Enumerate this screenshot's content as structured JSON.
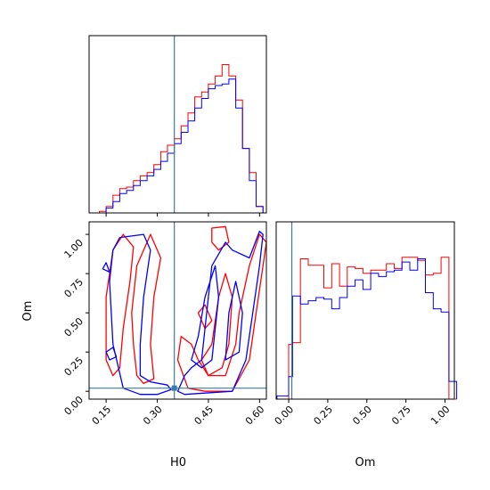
{
  "chart_data": {
    "type": "corner",
    "parameters": [
      "H0",
      "Om"
    ],
    "truth": {
      "H0": 0.35,
      "Om": 0.02
    },
    "colors": {
      "run_a": "#ff0000",
      "run_b": "#0000ff",
      "truth": "#3a7ca5"
    },
    "panels": [
      {
        "id": "hist-H0",
        "type": "step-histogram",
        "xlim": [
          0.1,
          0.62
        ],
        "bin_edges": [
          0.13,
          0.15,
          0.17,
          0.19,
          0.21,
          0.23,
          0.25,
          0.27,
          0.29,
          0.31,
          0.33,
          0.35,
          0.37,
          0.39,
          0.41,
          0.43,
          0.45,
          0.47,
          0.49,
          0.51,
          0.53,
          0.55,
          0.57,
          0.59,
          0.61
        ],
        "series": [
          {
            "color_key": "run_a",
            "values": [
              0.01,
              0.04,
              0.11,
              0.15,
              0.16,
              0.2,
              0.23,
              0.25,
              0.3,
              0.38,
              0.42,
              0.46,
              0.54,
              0.62,
              0.72,
              0.75,
              0.8,
              0.85,
              0.92,
              0.85,
              0.7,
              0.4,
              0.25,
              0.04
            ]
          },
          {
            "color_key": "run_b",
            "values": [
              0.0,
              0.03,
              0.07,
              0.12,
              0.14,
              0.17,
              0.2,
              0.23,
              0.27,
              0.32,
              0.37,
              0.43,
              0.5,
              0.57,
              0.65,
              0.71,
              0.77,
              0.79,
              0.8,
              0.83,
              0.65,
              0.4,
              0.2,
              0.04
            ]
          }
        ]
      },
      {
        "id": "contour-H0-Om",
        "type": "contour",
        "xlim": [
          0.1,
          0.62
        ],
        "ylim": [
          -0.05,
          1.08
        ],
        "xticks": [
          "0.15",
          "0.30",
          "0.45",
          "0.60"
        ],
        "yticks": [
          "0.00",
          "0.25",
          "0.50",
          "0.75",
          "1.00"
        ],
        "xlabel": "H0",
        "ylabel": "Om",
        "series": [
          {
            "color_key": "run_a",
            "contours": [
              [
                [
                  0.15,
                  0.2
                ],
                [
                  0.15,
                  0.6
                ],
                [
                  0.17,
                  0.9
                ],
                [
                  0.2,
                  1.0
                ],
                [
                  0.23,
                  0.92
                ],
                [
                  0.22,
                  0.7
                ],
                [
                  0.2,
                  0.4
                ],
                [
                  0.19,
                  0.15
                ],
                [
                  0.17,
                  0.1
                ]
              ],
              [
                [
                  0.23,
                  0.3
                ],
                [
                  0.225,
                  0.5
                ],
                [
                  0.24,
                  0.8
                ],
                [
                  0.28,
                  1.0
                ],
                [
                  0.31,
                  0.85
                ],
                [
                  0.29,
                  0.6
                ],
                [
                  0.28,
                  0.3
                ],
                [
                  0.29,
                  0.08
                ],
                [
                  0.26,
                  0.05
                ],
                [
                  0.24,
                  0.1
                ]
              ],
              [
                [
                  0.39,
                  0.02
                ],
                [
                  0.44,
                  0.0
                ],
                [
                  0.52,
                  0.0
                ],
                [
                  0.57,
                  0.2
                ],
                [
                  0.59,
                  0.5
                ],
                [
                  0.61,
                  0.8
                ],
                [
                  0.62,
                  0.95
                ],
                [
                  0.6,
                  1.0
                ],
                [
                  0.57,
                  0.8
                ],
                [
                  0.54,
                  0.5
                ],
                [
                  0.53,
                  0.3
                ],
                [
                  0.5,
                  0.1
                ],
                [
                  0.45,
                  0.1
                ],
                [
                  0.42,
                  0.2
                ],
                [
                  0.4,
                  0.3
                ],
                [
                  0.37,
                  0.35
                ],
                [
                  0.36,
                  0.2
                ]
              ],
              [
                [
                  0.43,
                  0.2
                ],
                [
                  0.46,
                  0.3
                ],
                [
                  0.48,
                  0.6
                ],
                [
                  0.5,
                  0.75
                ],
                [
                  0.52,
                  0.6
                ],
                [
                  0.51,
                  0.3
                ],
                [
                  0.49,
                  0.15
                ],
                [
                  0.45,
                  0.1
                ]
              ],
              [
                [
                  0.46,
                  0.95
                ],
                [
                  0.46,
                  1.04
                ],
                [
                  0.5,
                  1.05
                ],
                [
                  0.51,
                  0.95
                ],
                [
                  0.48,
                  0.9
                ]
              ],
              [
                [
                  0.42,
                  0.5
                ],
                [
                  0.44,
                  0.55
                ],
                [
                  0.46,
                  0.45
                ],
                [
                  0.44,
                  0.4
                ]
              ]
            ]
          },
          {
            "color_key": "run_b",
            "contours": [
              [
                [
                  0.2,
                  0.02
                ],
                [
                  0.17,
                  0.3
                ],
                [
                  0.16,
                  0.7
                ],
                [
                  0.17,
                  0.9
                ],
                [
                  0.19,
                  0.98
                ],
                [
                  0.26,
                  1.0
                ],
                [
                  0.28,
                  0.9
                ],
                [
                  0.26,
                  0.6
                ],
                [
                  0.25,
                  0.3
                ],
                [
                  0.25,
                  0.1
                ],
                [
                  0.28,
                  0.06
                ],
                [
                  0.33,
                  0.04
                ],
                [
                  0.34,
                  0.01
                ],
                [
                  0.3,
                  -0.02
                ],
                [
                  0.25,
                  -0.02
                ]
              ],
              [
                [
                  0.36,
                  0.0
                ],
                [
                  0.38,
                  -0.02
                ],
                [
                  0.52,
                  0.0
                ],
                [
                  0.56,
                  0.2
                ],
                [
                  0.58,
                  0.5
                ],
                [
                  0.6,
                  0.8
                ],
                [
                  0.61,
                  1.0
                ],
                [
                  0.6,
                  1.02
                ],
                [
                  0.57,
                  0.85
                ],
                [
                  0.52,
                  0.9
                ],
                [
                  0.5,
                  0.95
                ],
                [
                  0.46,
                  0.8
                ],
                [
                  0.45,
                  0.6
                ],
                [
                  0.44,
                  0.4
                ],
                [
                  0.43,
                  0.2
                ],
                [
                  0.4,
                  0.15
                ],
                [
                  0.38,
                  0.1
                ]
              ],
              [
                [
                  0.4,
                  0.2
                ],
                [
                  0.42,
                  0.35
                ],
                [
                  0.44,
                  0.6
                ],
                [
                  0.47,
                  0.8
                ],
                [
                  0.48,
                  0.6
                ],
                [
                  0.47,
                  0.4
                ],
                [
                  0.46,
                  0.2
                ],
                [
                  0.43,
                  0.15
                ]
              ],
              [
                [
                  0.5,
                  0.2
                ],
                [
                  0.51,
                  0.5
                ],
                [
                  0.53,
                  0.7
                ],
                [
                  0.55,
                  0.5
                ],
                [
                  0.54,
                  0.25
                ]
              ],
              [
                [
                  0.14,
                  0.78
                ],
                [
                  0.15,
                  0.82
                ],
                [
                  0.16,
                  0.76
                ]
              ],
              [
                [
                  0.15,
                  0.25
                ],
                [
                  0.17,
                  0.28
                ],
                [
                  0.18,
                  0.22
                ],
                [
                  0.16,
                  0.2
                ]
              ]
            ]
          }
        ]
      },
      {
        "id": "hist-Om",
        "type": "step-histogram",
        "xlim": [
          -0.08,
          1.06
        ],
        "xticks": [
          "0.00",
          "0.25",
          "0.50",
          "0.75",
          "1.00"
        ],
        "xlabel": "Om",
        "bin_edges": [
          -0.075,
          -0.025,
          0.0,
          0.025,
          0.075,
          0.125,
          0.175,
          0.225,
          0.275,
          0.325,
          0.375,
          0.425,
          0.475,
          0.525,
          0.575,
          0.625,
          0.675,
          0.725,
          0.775,
          0.825,
          0.875,
          0.925,
          0.975,
          1.025,
          1.075
        ],
        "series": [
          {
            "color_key": "run_a",
            "values": [
              0.0,
              0.0,
              0.34,
              0.35,
              0.87,
              0.83,
              0.83,
              0.69,
              0.84,
              0.7,
              0.82,
              0.81,
              0.78,
              0.8,
              0.8,
              0.84,
              0.81,
              0.88,
              0.88,
              0.86,
              0.77,
              0.78,
              0.88,
              0.0
            ]
          },
          {
            "color_key": "run_b",
            "values": [
              0.02,
              0.02,
              0.14,
              0.64,
              0.59,
              0.61,
              0.63,
              0.62,
              0.56,
              0.63,
              0.7,
              0.74,
              0.68,
              0.78,
              0.76,
              0.79,
              0.8,
              0.85,
              0.8,
              0.87,
              0.66,
              0.56,
              0.54,
              0.11
            ]
          }
        ]
      }
    ]
  }
}
